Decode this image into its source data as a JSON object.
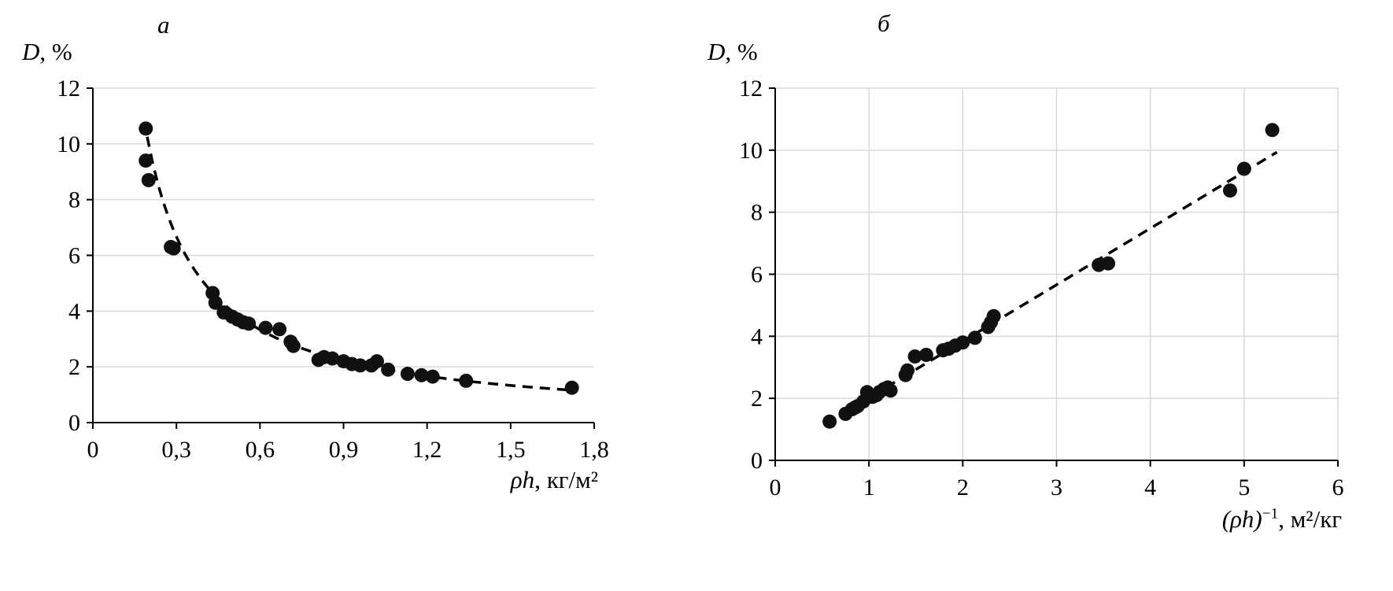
{
  "figure": {
    "bg": "#ffffff",
    "marker_color": "#111111",
    "grid_color": "#d9d9d9",
    "axis_color": "#000000",
    "trend_color": "#000000"
  },
  "chart_data": [
    {
      "type": "scatter",
      "panel_label": "а",
      "ylabel": {
        "var": "D",
        "rest": ", %"
      },
      "xlabel": {
        "var": "ρh",
        "sup": "",
        "rest": ", кг/м²"
      },
      "xlim": [
        0,
        1.8
      ],
      "ylim": [
        0,
        12
      ],
      "xticks": [
        0,
        0.3,
        0.6,
        0.9,
        1.2,
        1.5,
        1.8
      ],
      "xtick_labels": [
        "0",
        "0,3",
        "0,6",
        "0,9",
        "1,2",
        "1,5",
        "1,8"
      ],
      "yticks": [
        0,
        2,
        4,
        6,
        8,
        10,
        12
      ],
      "ytick_labels": [
        "0",
        "2",
        "4",
        "6",
        "8",
        "10",
        "12"
      ],
      "grid": "horizontal",
      "legend": "none",
      "points": [
        [
          0.19,
          10.55
        ],
        [
          0.19,
          9.4
        ],
        [
          0.2,
          8.7
        ],
        [
          0.28,
          6.3
        ],
        [
          0.29,
          6.25
        ],
        [
          0.43,
          4.65
        ],
        [
          0.44,
          4.3
        ],
        [
          0.47,
          3.95
        ],
        [
          0.5,
          3.8
        ],
        [
          0.52,
          3.7
        ],
        [
          0.54,
          3.6
        ],
        [
          0.56,
          3.55
        ],
        [
          0.62,
          3.4
        ],
        [
          0.67,
          3.35
        ],
        [
          0.71,
          2.9
        ],
        [
          0.72,
          2.75
        ],
        [
          0.81,
          2.25
        ],
        [
          0.83,
          2.35
        ],
        [
          0.86,
          2.3
        ],
        [
          0.9,
          2.2
        ],
        [
          0.93,
          2.1
        ],
        [
          0.96,
          2.05
        ],
        [
          1.0,
          2.05
        ],
        [
          1.02,
          2.2
        ],
        [
          1.06,
          1.9
        ],
        [
          1.13,
          1.75
        ],
        [
          1.18,
          1.7
        ],
        [
          1.22,
          1.65
        ],
        [
          1.34,
          1.5
        ],
        [
          1.72,
          1.25
        ]
      ],
      "trend": {
        "style": "dashed",
        "type": "power",
        "coef": 2.0,
        "exponent": -1,
        "x_start": 0.195,
        "x_end": 1.72
      }
    },
    {
      "type": "scatter",
      "panel_label": "б",
      "ylabel": {
        "var": "D",
        "rest": ", %"
      },
      "xlabel": {
        "var": "(ρh)",
        "sup": "−1",
        "rest": ", м²/кг"
      },
      "xlim": [
        0,
        6
      ],
      "ylim": [
        0,
        12
      ],
      "xticks": [
        0,
        1,
        2,
        3,
        4,
        5,
        6
      ],
      "xtick_labels": [
        "0",
        "1",
        "2",
        "3",
        "4",
        "5",
        "6"
      ],
      "yticks": [
        0,
        2,
        4,
        6,
        8,
        10,
        12
      ],
      "ytick_labels": [
        "0",
        "2",
        "4",
        "6",
        "8",
        "10",
        "12"
      ],
      "grid": "both",
      "legend": "none",
      "points": [
        [
          5.3,
          10.65
        ],
        [
          5.0,
          9.4
        ],
        [
          4.85,
          8.7
        ],
        [
          3.55,
          6.35
        ],
        [
          3.45,
          6.3
        ],
        [
          2.33,
          4.65
        ],
        [
          2.27,
          4.3
        ],
        [
          2.13,
          3.95
        ],
        [
          2.3,
          4.45
        ],
        [
          2.0,
          3.8
        ],
        [
          1.92,
          3.7
        ],
        [
          1.85,
          3.6
        ],
        [
          1.79,
          3.55
        ],
        [
          1.61,
          3.4
        ],
        [
          1.49,
          3.35
        ],
        [
          1.41,
          2.9
        ],
        [
          1.39,
          2.75
        ],
        [
          1.23,
          2.25
        ],
        [
          1.2,
          2.35
        ],
        [
          1.16,
          2.3
        ],
        [
          1.11,
          2.2
        ],
        [
          1.08,
          2.1
        ],
        [
          1.04,
          2.05
        ],
        [
          1.0,
          2.05
        ],
        [
          0.98,
          2.2
        ],
        [
          0.94,
          1.9
        ],
        [
          0.88,
          1.75
        ],
        [
          0.85,
          1.7
        ],
        [
          0.82,
          1.65
        ],
        [
          0.75,
          1.5
        ],
        [
          0.58,
          1.25
        ]
      ],
      "trend": {
        "style": "dashed",
        "type": "linear",
        "slope": 1.82,
        "intercept": 0.2,
        "x_start": 0.55,
        "x_end": 5.35
      }
    }
  ]
}
